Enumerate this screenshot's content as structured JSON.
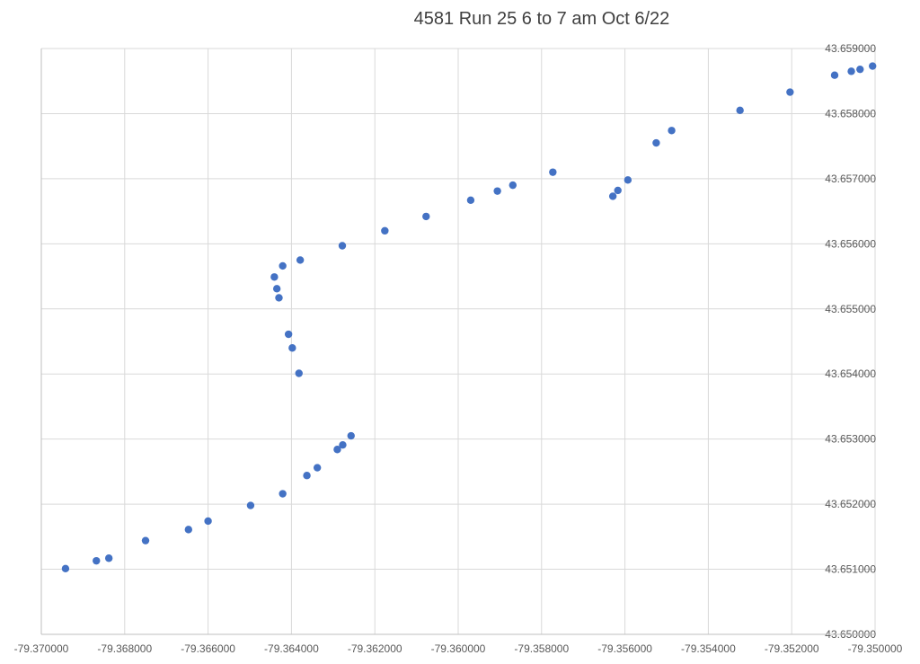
{
  "chart_data": {
    "type": "scatter",
    "title": "4581 Run 25 6 to 7 am Oct 6/22",
    "xlabel": "",
    "ylabel": "",
    "xlim": [
      -79.37,
      -79.35
    ],
    "ylim": [
      43.65,
      43.659
    ],
    "grid": true,
    "marker_color": "#4472C4",
    "x_ticks": [
      "-79.370000",
      "-79.368000",
      "-79.366000",
      "-79.364000",
      "-79.362000",
      "-79.360000",
      "-79.358000",
      "-79.356000",
      "-79.354000",
      "-79.352000",
      "-79.350000"
    ],
    "y_ticks": [
      "43.650000",
      "43.651000",
      "43.652000",
      "43.653000",
      "43.654000",
      "43.655000",
      "43.656000",
      "43.657000",
      "43.658000",
      "43.659000"
    ],
    "series": [
      {
        "points": [
          {
            "x": -79.36942,
            "y": 43.65101
          },
          {
            "x": -79.36868,
            "y": 43.65113
          },
          {
            "x": -79.36838,
            "y": 43.65117
          },
          {
            "x": -79.3675,
            "y": 43.65144
          },
          {
            "x": -79.36647,
            "y": 43.65161
          },
          {
            "x": -79.366,
            "y": 43.65174
          },
          {
            "x": -79.36498,
            "y": 43.65198
          },
          {
            "x": -79.36421,
            "y": 43.65216
          },
          {
            "x": -79.36363,
            "y": 43.65244
          },
          {
            "x": -79.36338,
            "y": 43.65256
          },
          {
            "x": -79.3629,
            "y": 43.65284
          },
          {
            "x": -79.36277,
            "y": 43.65291
          },
          {
            "x": -79.36257,
            "y": 43.65305
          },
          {
            "x": -79.36382,
            "y": 43.65401
          },
          {
            "x": -79.36398,
            "y": 43.6544
          },
          {
            "x": -79.36407,
            "y": 43.65461
          },
          {
            "x": -79.3643,
            "y": 43.65517
          },
          {
            "x": -79.36435,
            "y": 43.65531
          },
          {
            "x": -79.36441,
            "y": 43.65549
          },
          {
            "x": -79.36421,
            "y": 43.65566
          },
          {
            "x": -79.36379,
            "y": 43.65575
          },
          {
            "x": -79.36278,
            "y": 43.65597
          },
          {
            "x": -79.36176,
            "y": 43.6562
          },
          {
            "x": -79.36077,
            "y": 43.65642
          },
          {
            "x": -79.3597,
            "y": 43.65667
          },
          {
            "x": -79.35906,
            "y": 43.65681
          },
          {
            "x": -79.35869,
            "y": 43.6569
          },
          {
            "x": -79.35773,
            "y": 43.6571
          },
          {
            "x": -79.35629,
            "y": 43.65673
          },
          {
            "x": -79.35617,
            "y": 43.65682
          },
          {
            "x": -79.35593,
            "y": 43.65698
          },
          {
            "x": -79.35525,
            "y": 43.65755
          },
          {
            "x": -79.35488,
            "y": 43.65774
          },
          {
            "x": -79.35324,
            "y": 43.65805
          },
          {
            "x": -79.35204,
            "y": 43.65833
          },
          {
            "x": -79.35097,
            "y": 43.65859
          },
          {
            "x": -79.35057,
            "y": 43.65865
          },
          {
            "x": -79.35036,
            "y": 43.65868
          },
          {
            "x": -79.35006,
            "y": 43.65873
          }
        ]
      }
    ]
  }
}
